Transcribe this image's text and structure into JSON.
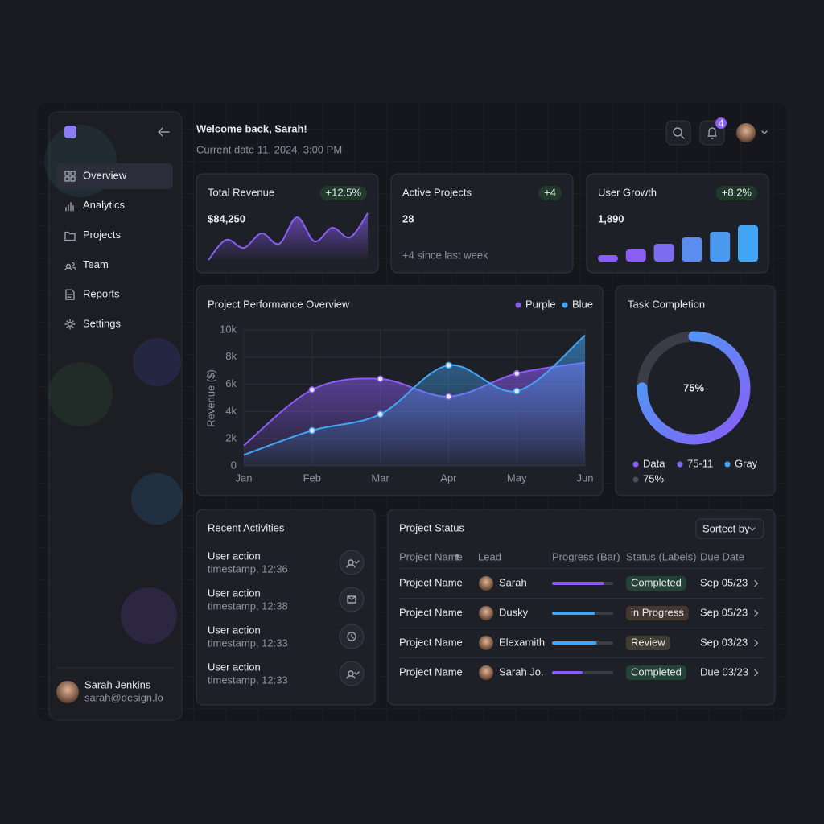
{
  "sidebar": {
    "nav": [
      "Overview",
      "Analytics",
      "Projects",
      "Team",
      "Reports",
      "Settings"
    ],
    "user": {
      "name": "Sarah Jenkins",
      "email": "sarah@design.lo"
    }
  },
  "header": {
    "title": "Welcome back, Sarah!",
    "subtitle": "Current date 11, 2024, 3:00 PM",
    "notifications": 4
  },
  "kpis": [
    {
      "label": "Total Revenue",
      "value": "$84,250",
      "change": "+12.5%"
    },
    {
      "label": "Active Projects",
      "value": "28",
      "change": "+4",
      "note": "+4 since last week"
    },
    {
      "label": "User Growth",
      "value": "1,890",
      "change": "+8.2%"
    }
  ],
  "chart_data": [
    {
      "type": "area",
      "values": [
        2,
        27,
        17,
        35,
        22,
        55,
        25,
        42,
        30,
        60
      ],
      "color": "#8b5cf6"
    },
    {
      "type": "bar",
      "values": [
        8,
        15,
        22,
        30,
        37,
        45
      ],
      "colors": [
        "#8b5cf6",
        "#8b5cf6",
        "#7c6cf0",
        "#5b8def",
        "#4c9af0",
        "#42a5f5"
      ]
    },
    {
      "type": "line",
      "title": "Project Performance Overview",
      "ylabel": "Revenue ($)",
      "categories": [
        "Jan",
        "Feb",
        "Mar",
        "Apr",
        "May",
        "Jun"
      ],
      "series": [
        {
          "name": "Purple",
          "color": "#8b5cf6",
          "values": [
            1500,
            5600,
            6400,
            5100,
            6800,
            7600
          ]
        },
        {
          "name": "Blue",
          "color": "#42a5f5",
          "values": [
            800,
            2600,
            3800,
            7400,
            5500,
            9600
          ]
        }
      ],
      "ylim": [
        0,
        10000
      ],
      "yticks": [
        0,
        {
          "value": 2000,
          "label": "2k"
        },
        {
          "value": 4000,
          "label": "4k"
        },
        {
          "value": 6000,
          "label": "6k"
        },
        {
          "value": 8000,
          "label": "8k"
        },
        {
          "value": 10000,
          "label": "10k"
        }
      ],
      "grid": true
    },
    {
      "type": "donut",
      "title": "Task Completion",
      "values": [
        75
      ],
      "value_labels": [
        "75%"
      ],
      "legend": [
        {
          "name": "Data",
          "color": "#8b5cf6"
        },
        {
          "name": "75-11",
          "color": "#7c6cf0"
        },
        {
          "name": "Gray",
          "color": "#42a5f5"
        },
        {
          "name": "75%",
          "color": "#4b4f5a"
        }
      ]
    }
  ],
  "activities": {
    "title": "Recent Activities",
    "items": [
      {
        "title": "User action",
        "time": "timestamp, 12:36"
      },
      {
        "title": "User action",
        "time": "timestamp, 12:38"
      },
      {
        "title": "User action",
        "time": "timestamp, 12:33"
      },
      {
        "title": "User action",
        "time": "timestamp, 12:33"
      }
    ]
  },
  "table": {
    "title": "Project Status",
    "sort": "Sortect by",
    "columns": [
      "Project Name",
      "Lead",
      "Progress (Bar)",
      "Status (Labels)",
      "Due Date"
    ],
    "rows": [
      {
        "name": "Project Name",
        "lead": "Sarah",
        "progress": 85,
        "bar_color": "#8b5cf6",
        "status": "Completed",
        "status_color": "#4ade80",
        "due": "Sep 05/23"
      },
      {
        "name": "Project Name",
        "lead": "Dusky",
        "progress": 70,
        "bar_color": "#42a5f5",
        "status": "in Progress",
        "status_color": "#f0a35e",
        "due": "Sep 05/23"
      },
      {
        "name": "Project Name",
        "lead": "Elexamith",
        "progress": 73,
        "bar_color": "#42a5f5",
        "status": "Review",
        "status_color": "#e8c36a",
        "due": "Sep 03/23"
      },
      {
        "name": "Project Name",
        "lead": "Sarah Jo.",
        "progress": 50,
        "bar_color": "#8b5cf6",
        "status": "Completed",
        "status_color": "#4ade80",
        "due": "Due 03/23"
      }
    ]
  }
}
